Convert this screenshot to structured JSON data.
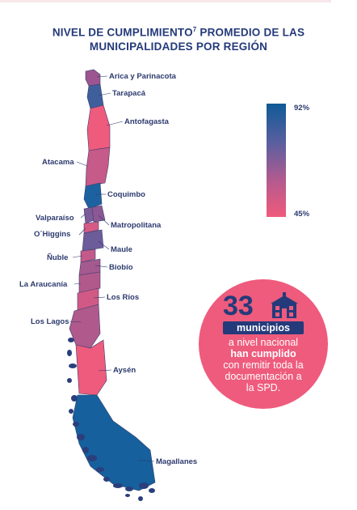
{
  "title": {
    "line1": "NIVEL DE CUMPLIMIENTO",
    "sup": "7",
    "line1_rest": " PROMEDIO DE LAS",
    "line2": "MUNICIPALIDADES POR REGIÓN"
  },
  "regions": [
    {
      "name": "Arica y Parinacota",
      "color": "#9c5590"
    },
    {
      "name": "Tarapacá",
      "color": "#3f5e9c"
    },
    {
      "name": "Antofagasta",
      "color": "#ee5b7c"
    },
    {
      "name": "Atacama",
      "color": "#c65a88"
    },
    {
      "name": "Coquimbo",
      "color": "#1c62a0"
    },
    {
      "name": "Valparaíso",
      "color": "#7b5b98"
    },
    {
      "name": "Matropolitana",
      "color": "#8c5894"
    },
    {
      "name": "O´Higgins",
      "color": "#d65a86"
    },
    {
      "name": "Maule",
      "color": "#6d5c9a"
    },
    {
      "name": "Ñuble",
      "color": "#c35a8a"
    },
    {
      "name": "Biobío",
      "color": "#a4598f"
    },
    {
      "name": "La Araucanía",
      "color": "#b2598c"
    },
    {
      "name": "Los Ríos",
      "color": "#d15a85"
    },
    {
      "name": "Los Lagos",
      "color": "#b0598c"
    },
    {
      "name": "Aysén",
      "color": "#ee5b7c"
    },
    {
      "name": "Magallanes",
      "color": "#16609d"
    }
  ],
  "legend": {
    "max": "92%",
    "min": "45%",
    "color_max": "#0f5a97",
    "color_min": "#ef5a7b"
  },
  "callout": {
    "number": "33",
    "icon": "building-icon",
    "pill": "municipios",
    "line1": "a nivel nacional",
    "line2": "han cumplido",
    "line3": "con remitir toda la",
    "line4": "documentación a",
    "line5": "la SPD."
  }
}
